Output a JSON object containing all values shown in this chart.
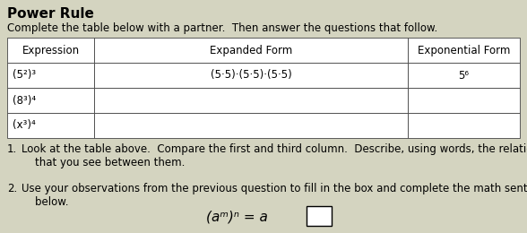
{
  "title": "Power Rule",
  "subtitle": "Complete the table below with a partner.  Then answer the questions that follow.",
  "col_headers": [
    "Expression",
    "Expanded Form",
    "Exponential Form"
  ],
  "rows": [
    [
      "(5²)³",
      "(5·5)·(5·5)·(5·5)",
      "5⁶"
    ],
    [
      "(8³)⁴",
      "",
      ""
    ],
    [
      "(x³)⁴",
      "",
      ""
    ]
  ],
  "q1_num": "1.",
  "q1_text": "Look at the table above.  Compare the first and third column.  Describe, using words, the relationship\n    that you see between them.",
  "q2_num": "2.",
  "q2_text": "Use your observations from the previous question to fill in the box and complete the math sentence\n    below.",
  "bg_color": "#d4d4c0",
  "title_font_size": 11,
  "body_font_size": 8.5,
  "eq_font_size": 11
}
